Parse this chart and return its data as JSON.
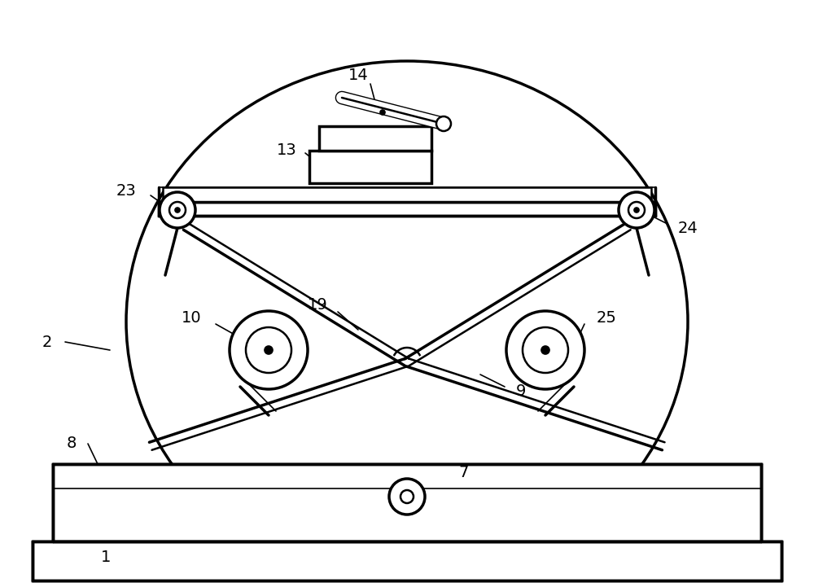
{
  "bg_color": "#ffffff",
  "line_color": "#000000",
  "lw_thin": 1.2,
  "lw_med": 1.8,
  "lw_thick": 2.5,
  "fig_width": 10.0,
  "fig_height": 7.21,
  "dpi": 100
}
